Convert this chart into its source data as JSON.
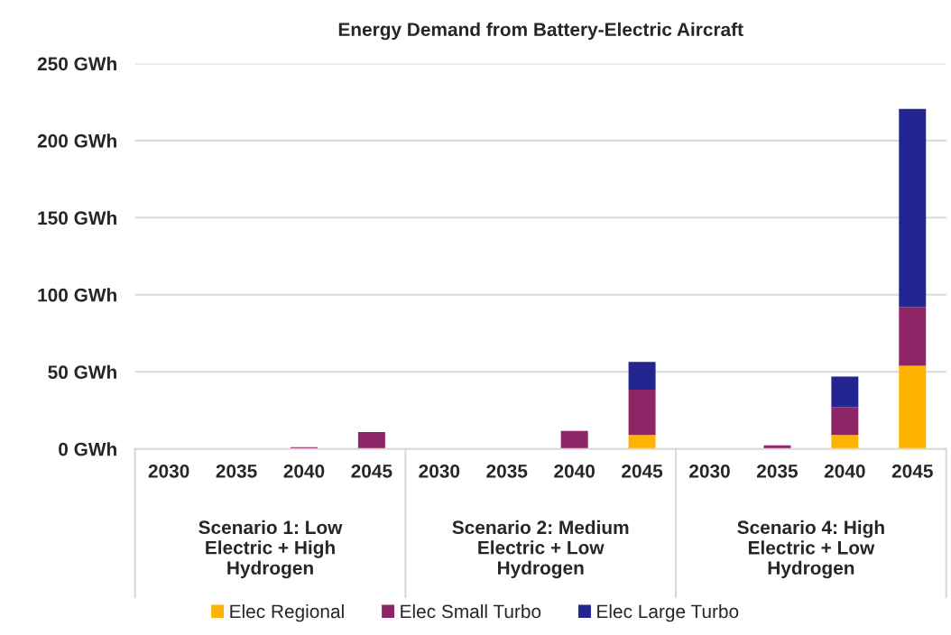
{
  "chart_data": {
    "type": "bar",
    "title": "Energy Demand from Battery-Electric Aircraft",
    "categories": [
      "2030",
      "2035",
      "2040",
      "2045",
      "2030",
      "2035",
      "2040",
      "2045",
      "2030",
      "2035",
      "2040",
      "2045"
    ],
    "stacked": true,
    "series": [
      {
        "name": "Elec Regional",
        "color": "#ffb300",
        "values": [
          0,
          0,
          0,
          0,
          0,
          0,
          0,
          9,
          0,
          0,
          9,
          54
        ]
      },
      {
        "name": "Elec Small Turbo",
        "color": "#8e2566",
        "values": [
          0,
          0,
          1.2,
          11,
          0,
          0,
          11.7,
          29.5,
          0,
          2.3,
          18,
          38
        ]
      },
      {
        "name": "Elec Large Turbo",
        "color": "#232690",
        "values": [
          0,
          0,
          0,
          0,
          0,
          0,
          0,
          18,
          0,
          0,
          20,
          128.5
        ]
      }
    ],
    "ylim": [
      0,
      250
    ],
    "yticks": [
      {
        "value": 0,
        "label": "0 GWh"
      },
      {
        "value": 50,
        "label": "50 GWh"
      },
      {
        "value": 100,
        "label": "100 GWh"
      },
      {
        "value": 150,
        "label": "150 GWh"
      },
      {
        "value": 200,
        "label": "200 GWh"
      },
      {
        "value": 250,
        "label": "250 GWh"
      }
    ],
    "annotations": [
      "Scenario 1: Low\nElectric + High\nHydrogen",
      "Scenario 2: Medium\nElectric + Low\nHydrogen",
      "Scenario 4: High\nElectric + Low\nHydrogen"
    ],
    "grid": "y",
    "legend": "bottom"
  }
}
